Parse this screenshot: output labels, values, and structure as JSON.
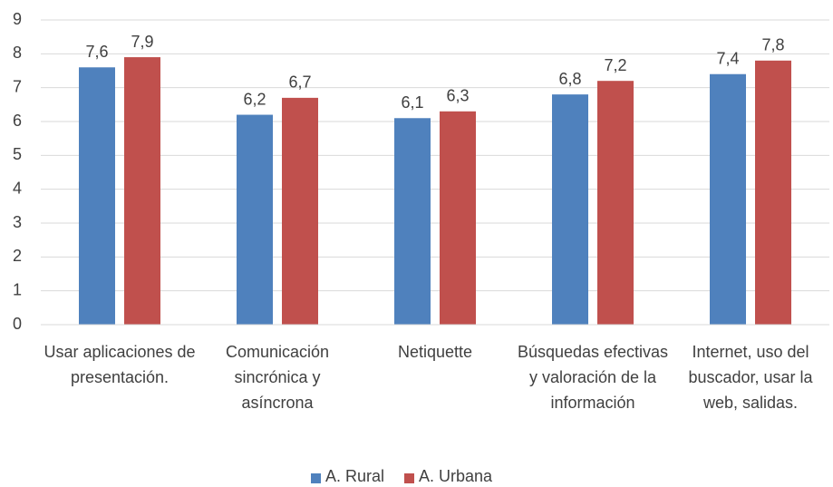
{
  "chart_data": {
    "type": "bar",
    "categories": [
      "Usar aplicaciones de presentación.",
      "Comunicación sincrónica y asíncrona",
      "Netiquette",
      "Búsquedas efectivas y valoración de la información",
      "Internet, uso del buscador, usar la web, salidas."
    ],
    "series": [
      {
        "name": "A. Rural",
        "color": "#4f81bd",
        "values": [
          7.6,
          6.2,
          6.1,
          6.8,
          7.4
        ],
        "value_labels": [
          "7,6",
          "6,2",
          "6,1",
          "6,8",
          "7,4"
        ]
      },
      {
        "name": "A. Urbana",
        "color": "#c0504d",
        "values": [
          7.9,
          6.7,
          6.3,
          7.2,
          7.8
        ],
        "value_labels": [
          "7,9",
          "6,7",
          "6,3",
          "7,2",
          "7,8"
        ]
      }
    ],
    "ylim": [
      0,
      9
    ],
    "yticks": [
      0,
      1,
      2,
      3,
      4,
      5,
      6,
      7,
      8,
      9
    ],
    "grid": true,
    "legend": "bottom"
  }
}
